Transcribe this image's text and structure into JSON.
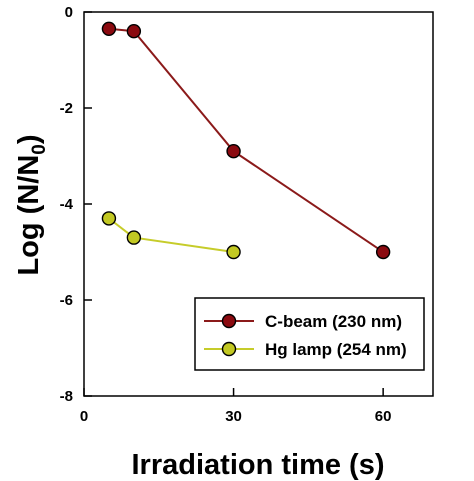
{
  "chart_data": {
    "type": "line",
    "title": "",
    "xlabel": "Irradiation time (s)",
    "ylabel": {
      "main": "Log (N/N",
      "sub": "0",
      "end": ")"
    },
    "xlim": [
      0,
      70
    ],
    "ylim": [
      -8,
      0
    ],
    "xticks": [
      0,
      30,
      60
    ],
    "yticks": [
      0,
      -2,
      -4,
      -6,
      -8
    ],
    "grid": false,
    "legend_position": "bottom-right",
    "series": [
      {
        "name": "C-beam (230 nm)",
        "color": "#8b0a10",
        "line_color": "#8b1a1a",
        "x": [
          5,
          10,
          30,
          60
        ],
        "y": [
          -0.35,
          -0.4,
          -2.9,
          -5.0
        ]
      },
      {
        "name": "Hg lamp (254 nm)",
        "color": "#c2c823",
        "line_color": "#c6cc2a",
        "x": [
          5,
          10,
          30
        ],
        "y": [
          -4.3,
          -4.7,
          -5.0
        ]
      }
    ]
  }
}
